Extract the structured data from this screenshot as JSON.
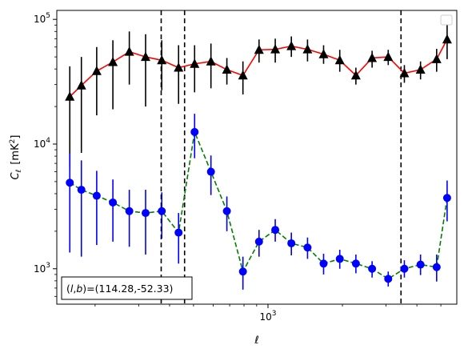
{
  "chart_data": {
    "type": "scatter",
    "xscale": "log",
    "yscale": "log",
    "xlim": [
      140,
      5800
    ],
    "ylim": [
      520,
      118000
    ],
    "xlabel": "ℓ",
    "ylabel": "C_ℓ [mK²]",
    "ylabel_symbol": "C",
    "ylabel_subscript": "ℓ",
    "ylabel_unit_prefix": "[mK",
    "ylabel_unit_sup": "2",
    "ylabel_unit_suffix": "]",
    "xticks": [
      {
        "value": 1000,
        "label_base": "10",
        "label_exp": "3"
      }
    ],
    "yticks": [
      {
        "value": 1000,
        "label_base": "10",
        "label_exp": "3"
      },
      {
        "value": 10000,
        "label_base": "10",
        "label_exp": "4"
      },
      {
        "value": 100000,
        "label_base": "10",
        "label_exp": "5"
      }
    ],
    "annotation": "(l,b)=(114.28,-52.33)",
    "annotation_parts": {
      "l": "l",
      "b": "b",
      "values": "=(114.28,-52.33)"
    },
    "legend_location": "top-right",
    "vlines": [
      370,
      460,
      3450
    ],
    "series": [
      {
        "marker": "triangle",
        "marker_color": "#000000",
        "line_color": "#ff0000",
        "line_style": "solid",
        "errbar_color": "#000000",
        "points": [
          {
            "x": 158,
            "y": 24000,
            "lo": 6500,
            "hi": 42000
          },
          {
            "x": 176,
            "y": 29500,
            "lo": 8500,
            "hi": 50000
          },
          {
            "x": 203,
            "y": 38500,
            "lo": 17000,
            "hi": 60000
          },
          {
            "x": 236,
            "y": 45500,
            "lo": 19000,
            "hi": 68000
          },
          {
            "x": 275,
            "y": 55000,
            "lo": 30000,
            "hi": 80000
          },
          {
            "x": 320,
            "y": 50000,
            "lo": 20000,
            "hi": 76000
          },
          {
            "x": 372,
            "y": 47000,
            "lo": 27000,
            "hi": 68000
          },
          {
            "x": 435,
            "y": 41000,
            "lo": 21000,
            "hi": 62000
          },
          {
            "x": 505,
            "y": 44000,
            "lo": 26000,
            "hi": 62000
          },
          {
            "x": 588,
            "y": 46000,
            "lo": 28000,
            "hi": 64000
          },
          {
            "x": 682,
            "y": 39500,
            "lo": 30000,
            "hi": 49000
          },
          {
            "x": 792,
            "y": 35500,
            "lo": 25000,
            "hi": 46000
          },
          {
            "x": 920,
            "y": 57000,
            "lo": 45000,
            "hi": 69000
          },
          {
            "x": 1070,
            "y": 57500,
            "lo": 45000,
            "hi": 70000
          },
          {
            "x": 1243,
            "y": 61000,
            "lo": 50000,
            "hi": 73000
          },
          {
            "x": 1445,
            "y": 57500,
            "lo": 46000,
            "hi": 69000
          },
          {
            "x": 1678,
            "y": 52500,
            "lo": 44000,
            "hi": 62000
          },
          {
            "x": 1951,
            "y": 47000,
            "lo": 38000,
            "hi": 57000
          },
          {
            "x": 2267,
            "y": 35500,
            "lo": 30000,
            "hi": 41000
          },
          {
            "x": 2636,
            "y": 49000,
            "lo": 41000,
            "hi": 56000
          },
          {
            "x": 3063,
            "y": 50000,
            "lo": 43000,
            "hi": 57000
          },
          {
            "x": 3560,
            "y": 37000,
            "lo": 31000,
            "hi": 43000
          },
          {
            "x": 4138,
            "y": 39500,
            "lo": 33000,
            "hi": 46000
          },
          {
            "x": 4808,
            "y": 48000,
            "lo": 38000,
            "hi": 58000
          },
          {
            "x": 5300,
            "y": 69000,
            "lo": 48000,
            "hi": 93000
          }
        ]
      },
      {
        "marker": "circle",
        "marker_color": "#0000ff",
        "line_color": "#008000",
        "line_style": "dashed",
        "errbar_color": "#0000ff",
        "points": [
          {
            "x": 158,
            "y": 4900,
            "lo": 1350,
            "hi": 8400
          },
          {
            "x": 176,
            "y": 4300,
            "lo": 1250,
            "hi": 7400
          },
          {
            "x": 203,
            "y": 3850,
            "lo": 1550,
            "hi": 6100
          },
          {
            "x": 236,
            "y": 3400,
            "lo": 1650,
            "hi": 5200
          },
          {
            "x": 275,
            "y": 2900,
            "lo": 1500,
            "hi": 4300
          },
          {
            "x": 320,
            "y": 2800,
            "lo": 1300,
            "hi": 4300
          },
          {
            "x": 372,
            "y": 2900,
            "lo": 1750,
            "hi": 4100
          },
          {
            "x": 435,
            "y": 1950,
            "lo": 1100,
            "hi": 2800
          },
          {
            "x": 505,
            "y": 12500,
            "lo": 7700,
            "hi": 17500
          },
          {
            "x": 588,
            "y": 6000,
            "lo": 3900,
            "hi": 8100
          },
          {
            "x": 682,
            "y": 2900,
            "lo": 2000,
            "hi": 3800
          },
          {
            "x": 792,
            "y": 950,
            "lo": 680,
            "hi": 1250
          },
          {
            "x": 920,
            "y": 1650,
            "lo": 1250,
            "hi": 2050
          },
          {
            "x": 1070,
            "y": 2050,
            "lo": 1650,
            "hi": 2500
          },
          {
            "x": 1243,
            "y": 1600,
            "lo": 1280,
            "hi": 1950
          },
          {
            "x": 1445,
            "y": 1480,
            "lo": 1200,
            "hi": 1780
          },
          {
            "x": 1678,
            "y": 1100,
            "lo": 900,
            "hi": 1320
          },
          {
            "x": 1951,
            "y": 1200,
            "lo": 1000,
            "hi": 1420
          },
          {
            "x": 2267,
            "y": 1100,
            "lo": 920,
            "hi": 1300
          },
          {
            "x": 2636,
            "y": 1000,
            "lo": 850,
            "hi": 1150
          },
          {
            "x": 3063,
            "y": 830,
            "lo": 720,
            "hi": 950
          },
          {
            "x": 3560,
            "y": 1000,
            "lo": 850,
            "hi": 1170
          },
          {
            "x": 4138,
            "y": 1080,
            "lo": 890,
            "hi": 1300
          },
          {
            "x": 4808,
            "y": 1030,
            "lo": 790,
            "hi": 1300
          },
          {
            "x": 5300,
            "y": 3700,
            "lo": 2400,
            "hi": 5100
          }
        ]
      }
    ]
  }
}
